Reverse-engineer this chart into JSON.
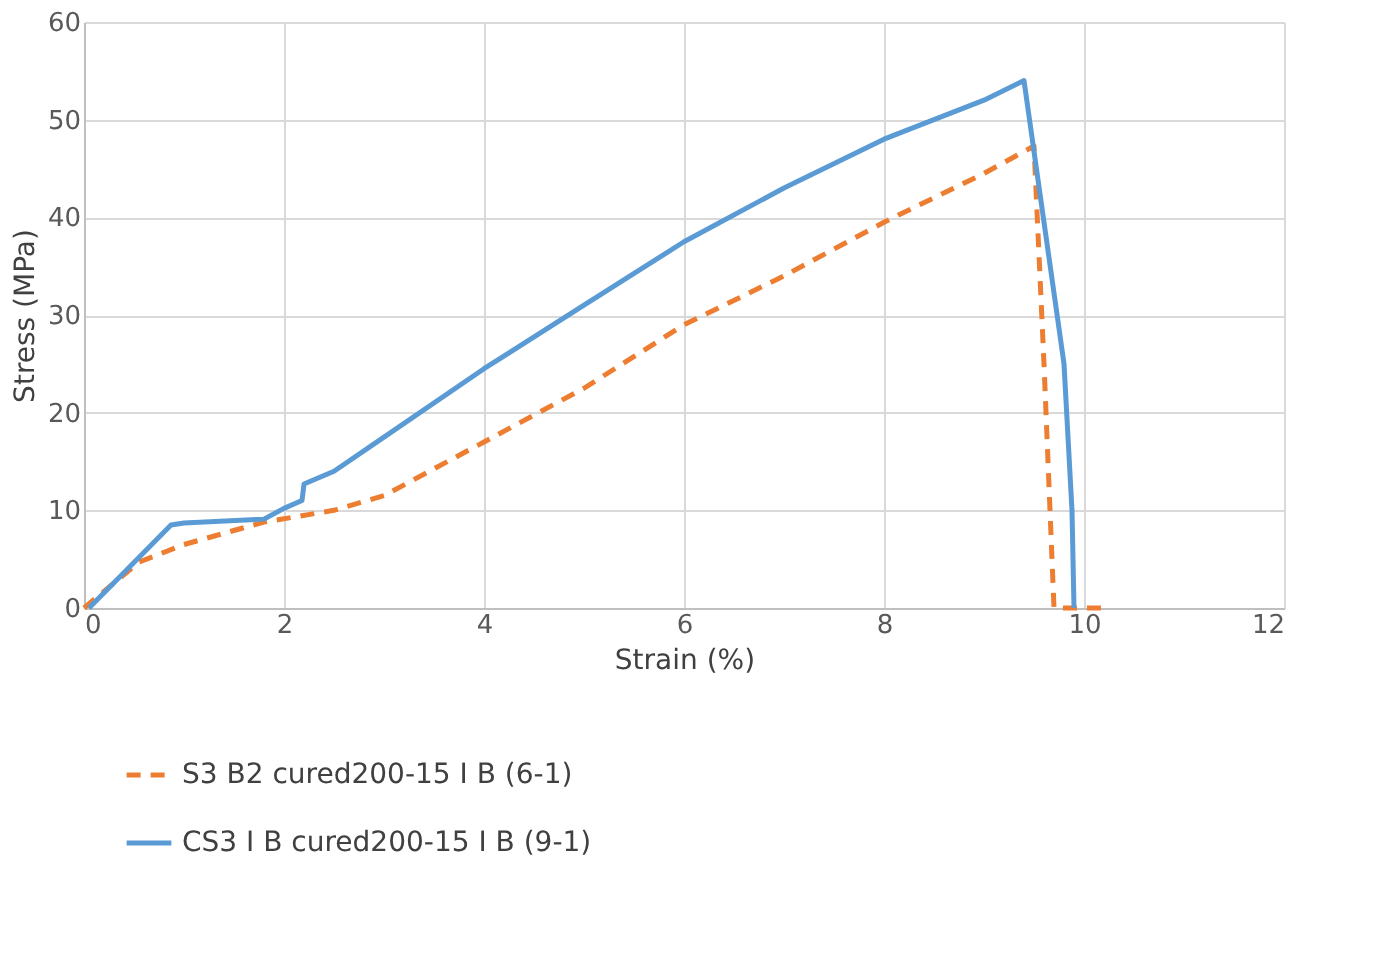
{
  "chart_data": {
    "type": "line",
    "xlabel": "Strain (%)",
    "ylabel": "Stress (MPa)",
    "xlim": [
      0,
      12
    ],
    "xticks": [
      0,
      2,
      4,
      6,
      8,
      10,
      12
    ],
    "ylim": [
      0,
      60
    ],
    "yticks": [
      0,
      10,
      20,
      30,
      40,
      50,
      60
    ],
    "grid": true,
    "legend": "bottom",
    "marker": "none",
    "series": [
      {
        "name": "S3 B2 cured200-15 I B (6-1)",
        "color": "#ed7d31",
        "line_style": "dashed",
        "x": [
          0,
          0.55,
          1,
          1.8,
          2.5,
          3,
          4,
          5,
          6,
          7,
          8,
          9,
          9.5,
          9.6,
          9.7,
          10.2
        ],
        "values": [
          0,
          4.7,
          6.5,
          8.8,
          10,
          11.5,
          17,
          22.5,
          29,
          34,
          39.5,
          44.5,
          47.3,
          25,
          0,
          0
        ]
      },
      {
        "name": "CS3 I B cured200-15 I B (9-1)",
        "color": "#5b9bd5",
        "line_style": "solid",
        "x": [
          0.05,
          0.87,
          1,
          1.8,
          2,
          2.18,
          2.2,
          2.5,
          3,
          4,
          5,
          6,
          7,
          8,
          9,
          9.4,
          9.8,
          9.88,
          9.9
        ],
        "values": [
          0,
          8.5,
          8.7,
          9.1,
          10.2,
          11,
          12.7,
          14,
          17.5,
          24.5,
          31,
          37.5,
          43,
          48,
          52,
          54,
          25,
          10,
          0
        ]
      }
    ]
  }
}
